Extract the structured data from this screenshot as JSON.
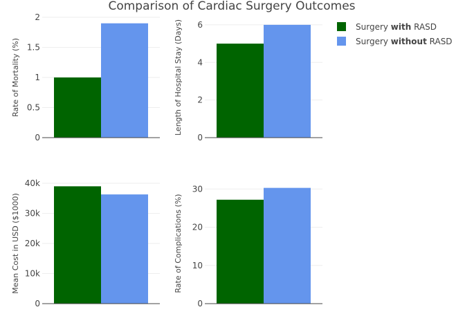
{
  "chart_data": {
    "type": "bar",
    "title": "Comparison of Cardiac Surgery Outcomes",
    "legend": {
      "placement": "top-right",
      "entries": [
        {
          "prefix": "Surgery ",
          "bold": "with",
          "suffix": " RASD",
          "color": "#006400"
        },
        {
          "prefix": "Surgery ",
          "bold": "without",
          "suffix": " RASD",
          "color": "#6495ED"
        }
      ]
    },
    "grid": true,
    "subplots": [
      {
        "ylabel": "Rate of Mortality (%)",
        "ylim": [
          0,
          2
        ],
        "ticks": [
          0,
          0.5,
          1,
          1.5,
          2
        ],
        "tick_labels": [
          "0",
          "0.5",
          "1",
          "1.5",
          "2"
        ],
        "values": [
          1.0,
          1.9
        ]
      },
      {
        "ylabel": "Length of Hospital Stay (Days)",
        "ylim": [
          0,
          6.4
        ],
        "ticks": [
          0,
          2,
          4,
          6
        ],
        "tick_labels": [
          "0",
          "2",
          "4",
          "6"
        ],
        "values": [
          5,
          6
        ]
      },
      {
        "ylabel": "Mean Cost in USD ($1000)",
        "ylim": [
          0,
          40000
        ],
        "ticks": [
          0,
          10000,
          20000,
          30000,
          40000
        ],
        "tick_labels": [
          "0",
          "10k",
          "20k",
          "30k",
          "40k"
        ],
        "values": [
          39000,
          36300
        ]
      },
      {
        "ylabel": "Rate of Complications (%)",
        "ylim": [
          0,
          31.5
        ],
        "ticks": [
          0,
          10,
          20,
          30
        ],
        "tick_labels": [
          "0",
          "10",
          "20",
          "30"
        ],
        "values": [
          27.2,
          30.3
        ]
      }
    ]
  }
}
